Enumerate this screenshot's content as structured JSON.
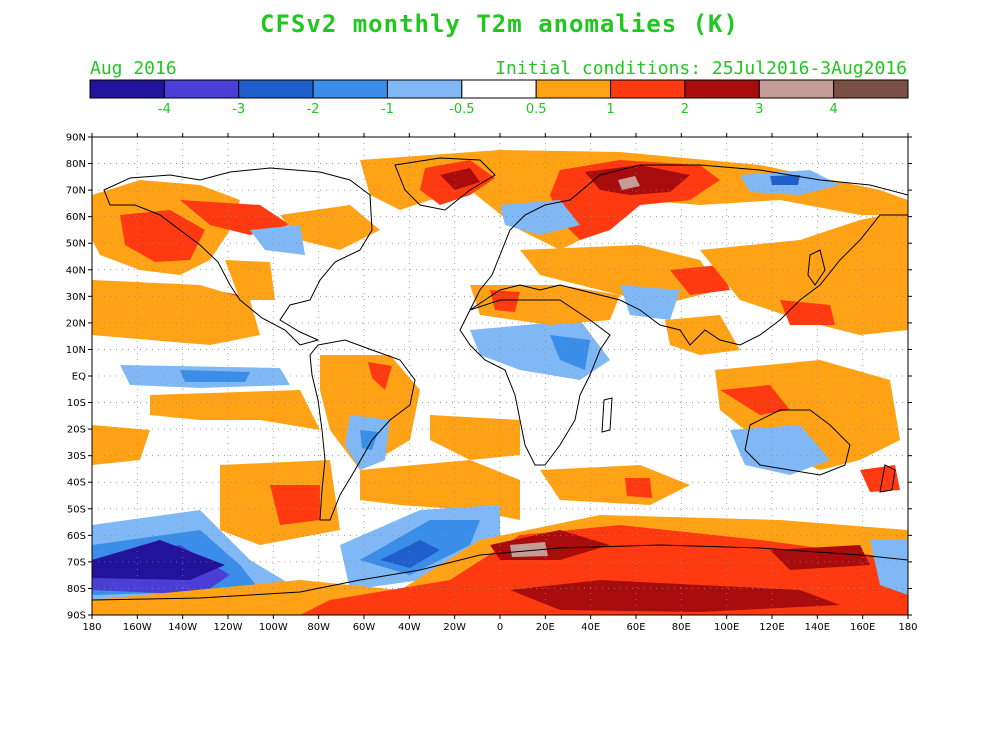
{
  "title": "CFSv2 monthly T2m anomalies (K)",
  "valid_month": "Aug 2016",
  "initial_conditions": "Initial conditions: 25Jul2016-3Aug2016",
  "colorbar": {
    "colors": [
      "#23129a",
      "#4a3ed6",
      "#1f5fcc",
      "#3a8de8",
      "#7fb8f4",
      "#ffffff",
      "#ffa216",
      "#ff3a10",
      "#a80c0c",
      "#c59c96",
      "#7a4f46"
    ],
    "tick_labels": [
      "-4",
      "-3",
      "-2",
      "-1",
      "-0.5",
      "0.5",
      "1",
      "2",
      "3",
      "4"
    ]
  },
  "map": {
    "lat_labels": [
      "90N",
      "80N",
      "70N",
      "60N",
      "50N",
      "40N",
      "30N",
      "20N",
      "10N",
      "EQ",
      "10S",
      "20S",
      "30S",
      "40S",
      "50S",
      "60S",
      "70S",
      "80S",
      "90S"
    ],
    "lon_labels": [
      "180",
      "160W",
      "140W",
      "120W",
      "100W",
      "80W",
      "60W",
      "40W",
      "20W",
      "0",
      "20E",
      "40E",
      "60E",
      "80E",
      "100E",
      "120E",
      "140E",
      "160E",
      "180"
    ],
    "colors": {
      "neutral": "#ffffff",
      "orange": "#ffa216",
      "red": "#ff3a10",
      "darkred": "#a80c0c",
      "pink": "#c59c96",
      "lightblue": "#7fb8f4",
      "midblue": "#3a8de8",
      "blue": "#1f5fcc",
      "purple": "#4a3ed6",
      "darkpurple": "#23129a",
      "coast": "#000000",
      "grid": "#888888"
    }
  }
}
